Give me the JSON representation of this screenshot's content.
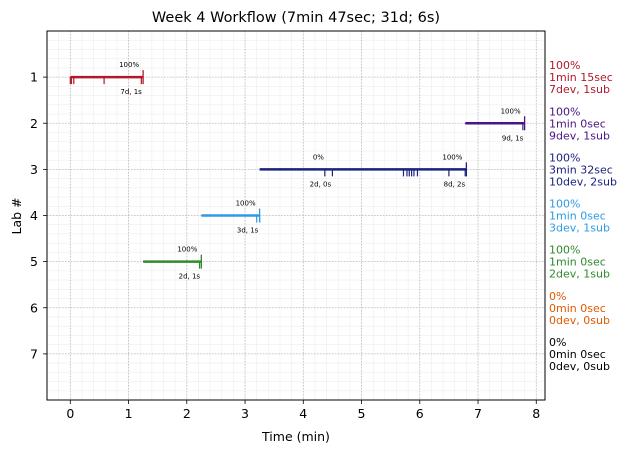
{
  "chart_data": {
    "type": "timeline",
    "title": "Week 4 Workflow (7min 47sec; 31d; 6s)",
    "xlabel": "Time (min)",
    "ylabel": "Lab #",
    "xlim": [
      -0.4,
      8.15
    ],
    "ylim": [
      8.0,
      0.0
    ],
    "xticks": [
      0,
      1,
      2,
      3,
      4,
      5,
      6,
      7,
      8
    ],
    "yticks": [
      1,
      2,
      3,
      4,
      5,
      6,
      7
    ],
    "grid": true,
    "labs": [
      {
        "lab": 1,
        "color": "#b2182b",
        "segments": [
          {
            "start": 0.0,
            "end": 1.25,
            "percent": "100%",
            "counts": "7d, 1s",
            "tick_times": [
              0.0,
              0.02,
              0.06,
              0.58,
              1.22
            ],
            "end_marker": 1.25
          }
        ],
        "summary": [
          "100%",
          "1min 15sec",
          "7dev, 1sub"
        ]
      },
      {
        "lab": 2,
        "color": "#4a1486",
        "segments": [
          {
            "start": 6.78,
            "end": 7.8,
            "percent": "100%",
            "counts": "9d, 1s",
            "tick_times": [
              7.77
            ],
            "end_marker": 7.8
          }
        ],
        "summary": [
          "100%",
          "1min 0sec",
          "9dev, 1sub"
        ]
      },
      {
        "lab": 3,
        "color": "#1a237e",
        "segments": [
          {
            "start": 3.25,
            "end": 4.5,
            "percent": "0%",
            "counts": "2d, 0s",
            "tick_times": [
              4.37,
              4.5
            ],
            "end_marker": null
          },
          {
            "start": 4.5,
            "end": 6.8,
            "percent": "100%",
            "counts": "8d, 2s",
            "tick_times": [
              5.72,
              5.78,
              5.82,
              5.86,
              5.9,
              5.96,
              6.5,
              6.78
            ],
            "end_marker": 6.8
          }
        ],
        "summary": [
          "100%",
          "3min 32sec",
          "10dev, 2sub"
        ]
      },
      {
        "lab": 4,
        "color": "#2e9ae6",
        "segments": [
          {
            "start": 2.25,
            "end": 3.25,
            "percent": "100%",
            "counts": "3d, 1s",
            "tick_times": [
              3.2,
              3.25
            ],
            "end_marker": 3.25
          }
        ],
        "summary": [
          "100%",
          "1min 0sec",
          "3dev, 1sub"
        ]
      },
      {
        "lab": 5,
        "color": "#2e8b2e",
        "segments": [
          {
            "start": 1.25,
            "end": 2.25,
            "percent": "100%",
            "counts": "2d, 1s",
            "tick_times": [
              2.22
            ],
            "end_marker": 2.25
          }
        ],
        "summary": [
          "100%",
          "1min 0sec",
          "2dev, 1sub"
        ]
      },
      {
        "lab": 6,
        "color": "#e05a00",
        "segments": [],
        "summary": [
          "0%",
          "0min 0sec",
          "0dev, 0sub"
        ]
      },
      {
        "lab": 7,
        "color": "#000000",
        "segments": [],
        "summary": [
          "0%",
          "0min 0sec",
          "0dev, 0sub"
        ]
      }
    ]
  }
}
